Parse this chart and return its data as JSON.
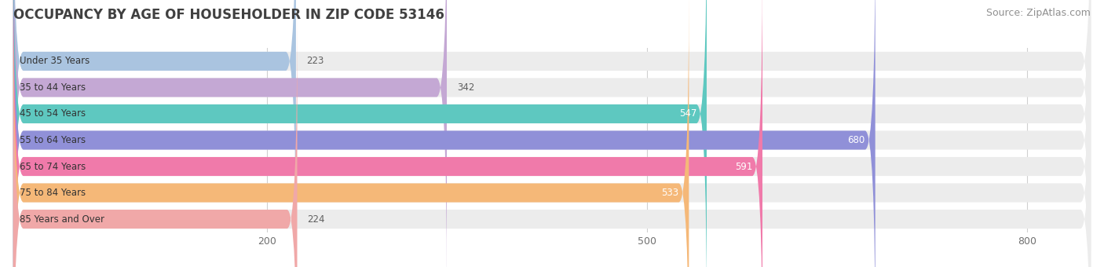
{
  "title": "OCCUPANCY BY AGE OF HOUSEHOLDER IN ZIP CODE 53146",
  "source": "Source: ZipAtlas.com",
  "categories": [
    "Under 35 Years",
    "35 to 44 Years",
    "45 to 54 Years",
    "55 to 64 Years",
    "65 to 74 Years",
    "75 to 84 Years",
    "85 Years and Over"
  ],
  "values": [
    223,
    342,
    547,
    680,
    591,
    533,
    224
  ],
  "bar_colors": [
    "#aac4e0",
    "#c4a8d4",
    "#5ec8c0",
    "#9090d8",
    "#f07aaa",
    "#f5b878",
    "#f0a8a8"
  ],
  "bar_bg_color": "#ececec",
  "xlim": [
    0,
    850
  ],
  "xticks": [
    200,
    500,
    800
  ],
  "title_color": "#404040",
  "source_color": "#909090",
  "value_color_inside": "#ffffff",
  "value_color_outside": "#606060",
  "background_color": "#ffffff",
  "title_fontsize": 12,
  "source_fontsize": 9,
  "bar_label_fontsize": 8.5,
  "value_fontsize": 8.5,
  "tick_fontsize": 9,
  "value_threshold": 400
}
